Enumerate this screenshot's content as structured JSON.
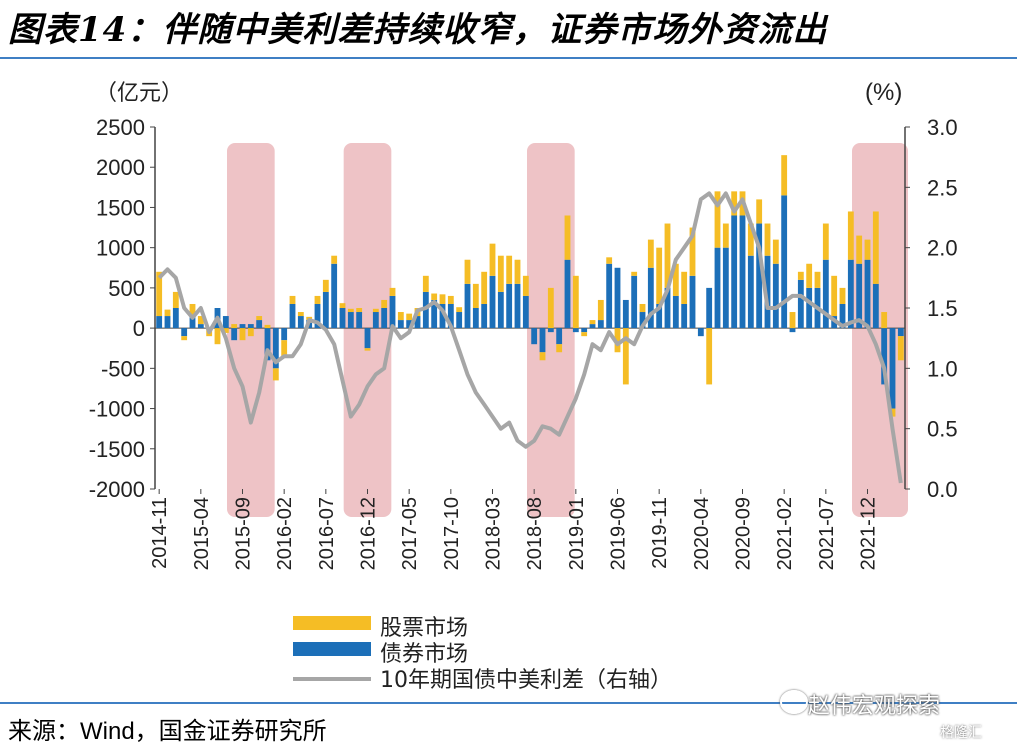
{
  "figure": {
    "title": "图表14：伴随中美利差持续收窄，证券市场外资流出",
    "source": "来源：Wind，国金证券研究所",
    "watermark": "赵伟宏观探索",
    "watermark_sub": "格隆汇"
  },
  "colors": {
    "stock": "#f5bd25",
    "bond": "#1c6fb8",
    "spread": "#a6a6a6",
    "shade": "#eab4b8",
    "rule": "#3f7fc4"
  },
  "chart_data": {
    "type": "bar",
    "left_unit": "（亿元）",
    "right_unit": "(%)",
    "left_ylim": [
      -2000,
      2500
    ],
    "right_ylim": [
      0.0,
      3.0
    ],
    "left_ticks": [
      "2500",
      "2000",
      "1500",
      "1000",
      "500",
      "0",
      "-500",
      "-1000",
      "-1500",
      "-2000"
    ],
    "right_ticks": [
      "3.0",
      "2.5",
      "2.0",
      "1.5",
      "1.0",
      "0.5",
      "0.0"
    ],
    "x_tick_labels": [
      "2014-11",
      "2015-04",
      "2015-09",
      "2016-02",
      "2016-07",
      "2016-12",
      "2017-05",
      "2017-10",
      "2018-03",
      "2018-08",
      "2019-01",
      "2019-06",
      "2019-11",
      "2020-04",
      "2020-09",
      "2021-02",
      "2021-07",
      "2021-12"
    ],
    "months": [
      "2014-11",
      "2014-12",
      "2015-01",
      "2015-02",
      "2015-03",
      "2015-04",
      "2015-05",
      "2015-06",
      "2015-07",
      "2015-08",
      "2015-09",
      "2015-10",
      "2015-11",
      "2015-12",
      "2016-01",
      "2016-02",
      "2016-03",
      "2016-04",
      "2016-05",
      "2016-06",
      "2016-07",
      "2016-08",
      "2016-09",
      "2016-10",
      "2016-11",
      "2016-12",
      "2017-01",
      "2017-02",
      "2017-03",
      "2017-04",
      "2017-05",
      "2017-06",
      "2017-07",
      "2017-08",
      "2017-09",
      "2017-10",
      "2017-11",
      "2017-12",
      "2018-01",
      "2018-02",
      "2018-03",
      "2018-04",
      "2018-05",
      "2018-06",
      "2018-07",
      "2018-08",
      "2018-09",
      "2018-10",
      "2018-11",
      "2018-12",
      "2019-01",
      "2019-02",
      "2019-03",
      "2019-04",
      "2019-05",
      "2019-06",
      "2019-07",
      "2019-08",
      "2019-09",
      "2019-10",
      "2019-11",
      "2019-12",
      "2020-01",
      "2020-02",
      "2020-03",
      "2020-04",
      "2020-05",
      "2020-06",
      "2020-07",
      "2020-08",
      "2020-09",
      "2020-10",
      "2020-11",
      "2020-12",
      "2021-01",
      "2021-02",
      "2021-03",
      "2021-04",
      "2021-05",
      "2021-06",
      "2021-07",
      "2021-08",
      "2021-09",
      "2021-10",
      "2021-11",
      "2021-12",
      "2022-01",
      "2022-02",
      "2022-03",
      "2022-04"
    ],
    "series": [
      {
        "name": "股票市场",
        "values": [
          550,
          80,
          200,
          -50,
          150,
          100,
          -100,
          -200,
          -60,
          50,
          -150,
          -100,
          50,
          40,
          -150,
          -200,
          100,
          50,
          40,
          100,
          150,
          100,
          60,
          40,
          50,
          -30,
          40,
          100,
          100,
          100,
          80,
          100,
          200,
          80,
          120,
          100,
          60,
          300,
          300,
          400,
          400,
          450,
          350,
          300,
          250,
          0,
          -100,
          500,
          -100,
          550,
          650,
          -50,
          50,
          250,
          80,
          -300,
          -700,
          50,
          100,
          350,
          700,
          800,
          400,
          400,
          600,
          0,
          -700,
          700,
          300,
          300,
          300,
          400,
          300,
          400,
          300,
          500,
          200,
          100,
          300,
          200,
          450,
          500,
          200,
          600,
          350,
          250,
          900,
          200,
          -100,
          -300
        ]
      },
      {
        "name": "债券市场",
        "values": [
          150,
          150,
          250,
          -100,
          150,
          50,
          0,
          250,
          150,
          -150,
          50,
          50,
          100,
          -400,
          -500,
          -150,
          300,
          150,
          100,
          300,
          450,
          800,
          250,
          200,
          200,
          -250,
          200,
          250,
          400,
          100,
          100,
          150,
          450,
          350,
          300,
          300,
          200,
          550,
          250,
          300,
          650,
          450,
          550,
          550,
          400,
          -200,
          -300,
          -50,
          -200,
          850,
          -50,
          -50,
          50,
          100,
          800,
          750,
          350,
          650,
          200,
          750,
          300,
          500,
          400,
          300,
          650,
          -100,
          500,
          1000,
          1000,
          1400,
          1400,
          900,
          1300,
          900,
          800,
          1650,
          -50,
          600,
          500,
          500,
          850,
          150,
          300,
          850,
          800,
          850,
          550,
          -700,
          -1000,
          -100
        ]
      },
      {
        "name": "10年期国债中美利差（右轴）",
        "values": [
          1.75,
          1.82,
          1.75,
          1.5,
          1.42,
          1.5,
          1.3,
          1.42,
          1.25,
          1.0,
          0.85,
          0.55,
          0.8,
          1.15,
          1.05,
          1.1,
          1.1,
          1.2,
          1.4,
          1.38,
          1.32,
          1.2,
          0.9,
          0.6,
          0.7,
          0.85,
          0.95,
          1.0,
          1.35,
          1.25,
          1.3,
          1.48,
          1.5,
          1.55,
          1.48,
          1.35,
          1.15,
          0.95,
          0.8,
          0.7,
          0.6,
          0.5,
          0.55,
          0.4,
          0.35,
          0.4,
          0.52,
          0.5,
          0.45,
          0.6,
          0.75,
          0.95,
          1.2,
          1.15,
          1.3,
          1.2,
          1.25,
          1.2,
          1.35,
          1.45,
          1.5,
          1.65,
          1.9,
          2.0,
          2.1,
          2.4,
          2.45,
          2.35,
          2.45,
          2.3,
          2.4,
          2.2,
          2.0,
          1.5,
          1.5,
          1.55,
          1.6,
          1.6,
          1.55,
          1.5,
          1.45,
          1.4,
          1.35,
          1.38,
          1.4,
          1.35,
          1.2,
          1.0,
          0.5,
          0.05
        ]
      }
    ],
    "shaded_ranges": [
      [
        "2015-08",
        "2015-12"
      ],
      [
        "2016-10",
        "2017-02"
      ],
      [
        "2018-08",
        "2018-12"
      ],
      [
        "2021-11",
        "2022-04"
      ]
    ]
  }
}
